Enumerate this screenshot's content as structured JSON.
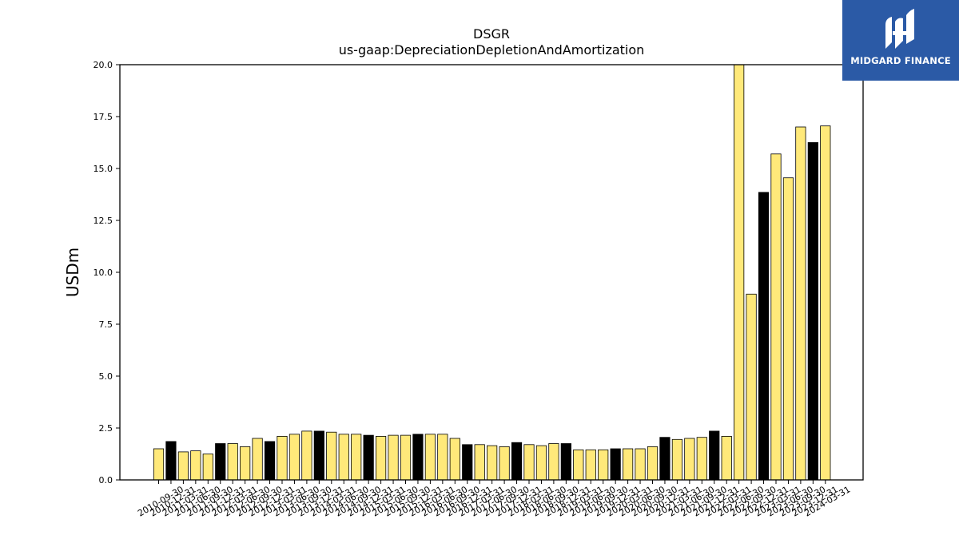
{
  "chart_data": {
    "type": "bar",
    "title": "DSGR",
    "subtitle": "us-gaap:DepreciationDepletionAndAmortization",
    "xlabel": "",
    "ylabel": "USDm",
    "ylim": [
      0,
      20.0
    ],
    "yticks": [
      "0.0",
      "2.5",
      "5.0",
      "7.5",
      "10.0",
      "12.5",
      "15.0",
      "17.5",
      "20.0"
    ],
    "grid": false,
    "legend": "none",
    "colors": {
      "quarter": "#ffe97a",
      "year_end": "#000000",
      "edge": "#000000"
    },
    "categories": [
      "2010-09-30",
      "2010-12-31",
      "2011-03-31",
      "2011-06-30",
      "2011-09-30",
      "2011-12-31",
      "2012-03-31",
      "2012-06-30",
      "2012-09-30",
      "2012-12-31",
      "2013-03-31",
      "2013-06-30",
      "2013-09-30",
      "2013-12-31",
      "2014-03-31",
      "2014-06-30",
      "2014-09-30",
      "2014-12-31",
      "2015-03-31",
      "2015-06-30",
      "2015-09-30",
      "2015-12-31",
      "2016-03-31",
      "2016-06-30",
      "2016-09-30",
      "2016-12-31",
      "2017-03-31",
      "2017-06-30",
      "2017-09-30",
      "2017-12-31",
      "2018-03-31",
      "2018-06-30",
      "2018-09-30",
      "2018-12-31",
      "2019-03-31",
      "2019-06-30",
      "2019-09-30",
      "2019-12-31",
      "2020-03-31",
      "2020-06-30",
      "2020-09-30",
      "2020-12-31",
      "2021-03-31",
      "2021-06-30",
      "2021-09-30",
      "2021-12-31",
      "2022-03-31",
      "2022-06-30",
      "2022-09-30",
      "2022-12-31",
      "2023-03-31",
      "2023-06-30",
      "2023-09-30",
      "2023-12-31",
      "2024-03-31"
    ],
    "values": [
      1.5,
      1.85,
      1.35,
      1.4,
      1.25,
      1.75,
      1.75,
      1.6,
      2.0,
      1.85,
      2.1,
      2.2,
      2.35,
      2.35,
      2.3,
      2.2,
      2.2,
      2.15,
      2.1,
      2.15,
      2.15,
      2.2,
      2.2,
      2.2,
      2.0,
      1.7,
      1.7,
      1.65,
      1.6,
      1.8,
      1.7,
      1.65,
      1.75,
      1.75,
      1.45,
      1.45,
      1.45,
      1.5,
      1.5,
      1.5,
      1.6,
      2.05,
      1.95,
      2.0,
      2.05,
      2.35,
      2.1,
      20.3,
      8.95,
      13.85,
      15.7,
      14.55,
      17.0,
      16.25,
      17.05
    ],
    "year_end": [
      false,
      true,
      false,
      false,
      false,
      true,
      false,
      false,
      false,
      true,
      false,
      false,
      false,
      true,
      false,
      false,
      false,
      true,
      false,
      false,
      false,
      true,
      false,
      false,
      false,
      true,
      false,
      false,
      false,
      true,
      false,
      false,
      false,
      true,
      false,
      false,
      false,
      true,
      false,
      false,
      false,
      true,
      false,
      false,
      false,
      true,
      false,
      false,
      false,
      true,
      false,
      false,
      false,
      true,
      false
    ]
  },
  "logo": {
    "text": "MIDGARD FINANCE",
    "icon": "midgard-logo-icon",
    "background": "#2b5aa6"
  }
}
